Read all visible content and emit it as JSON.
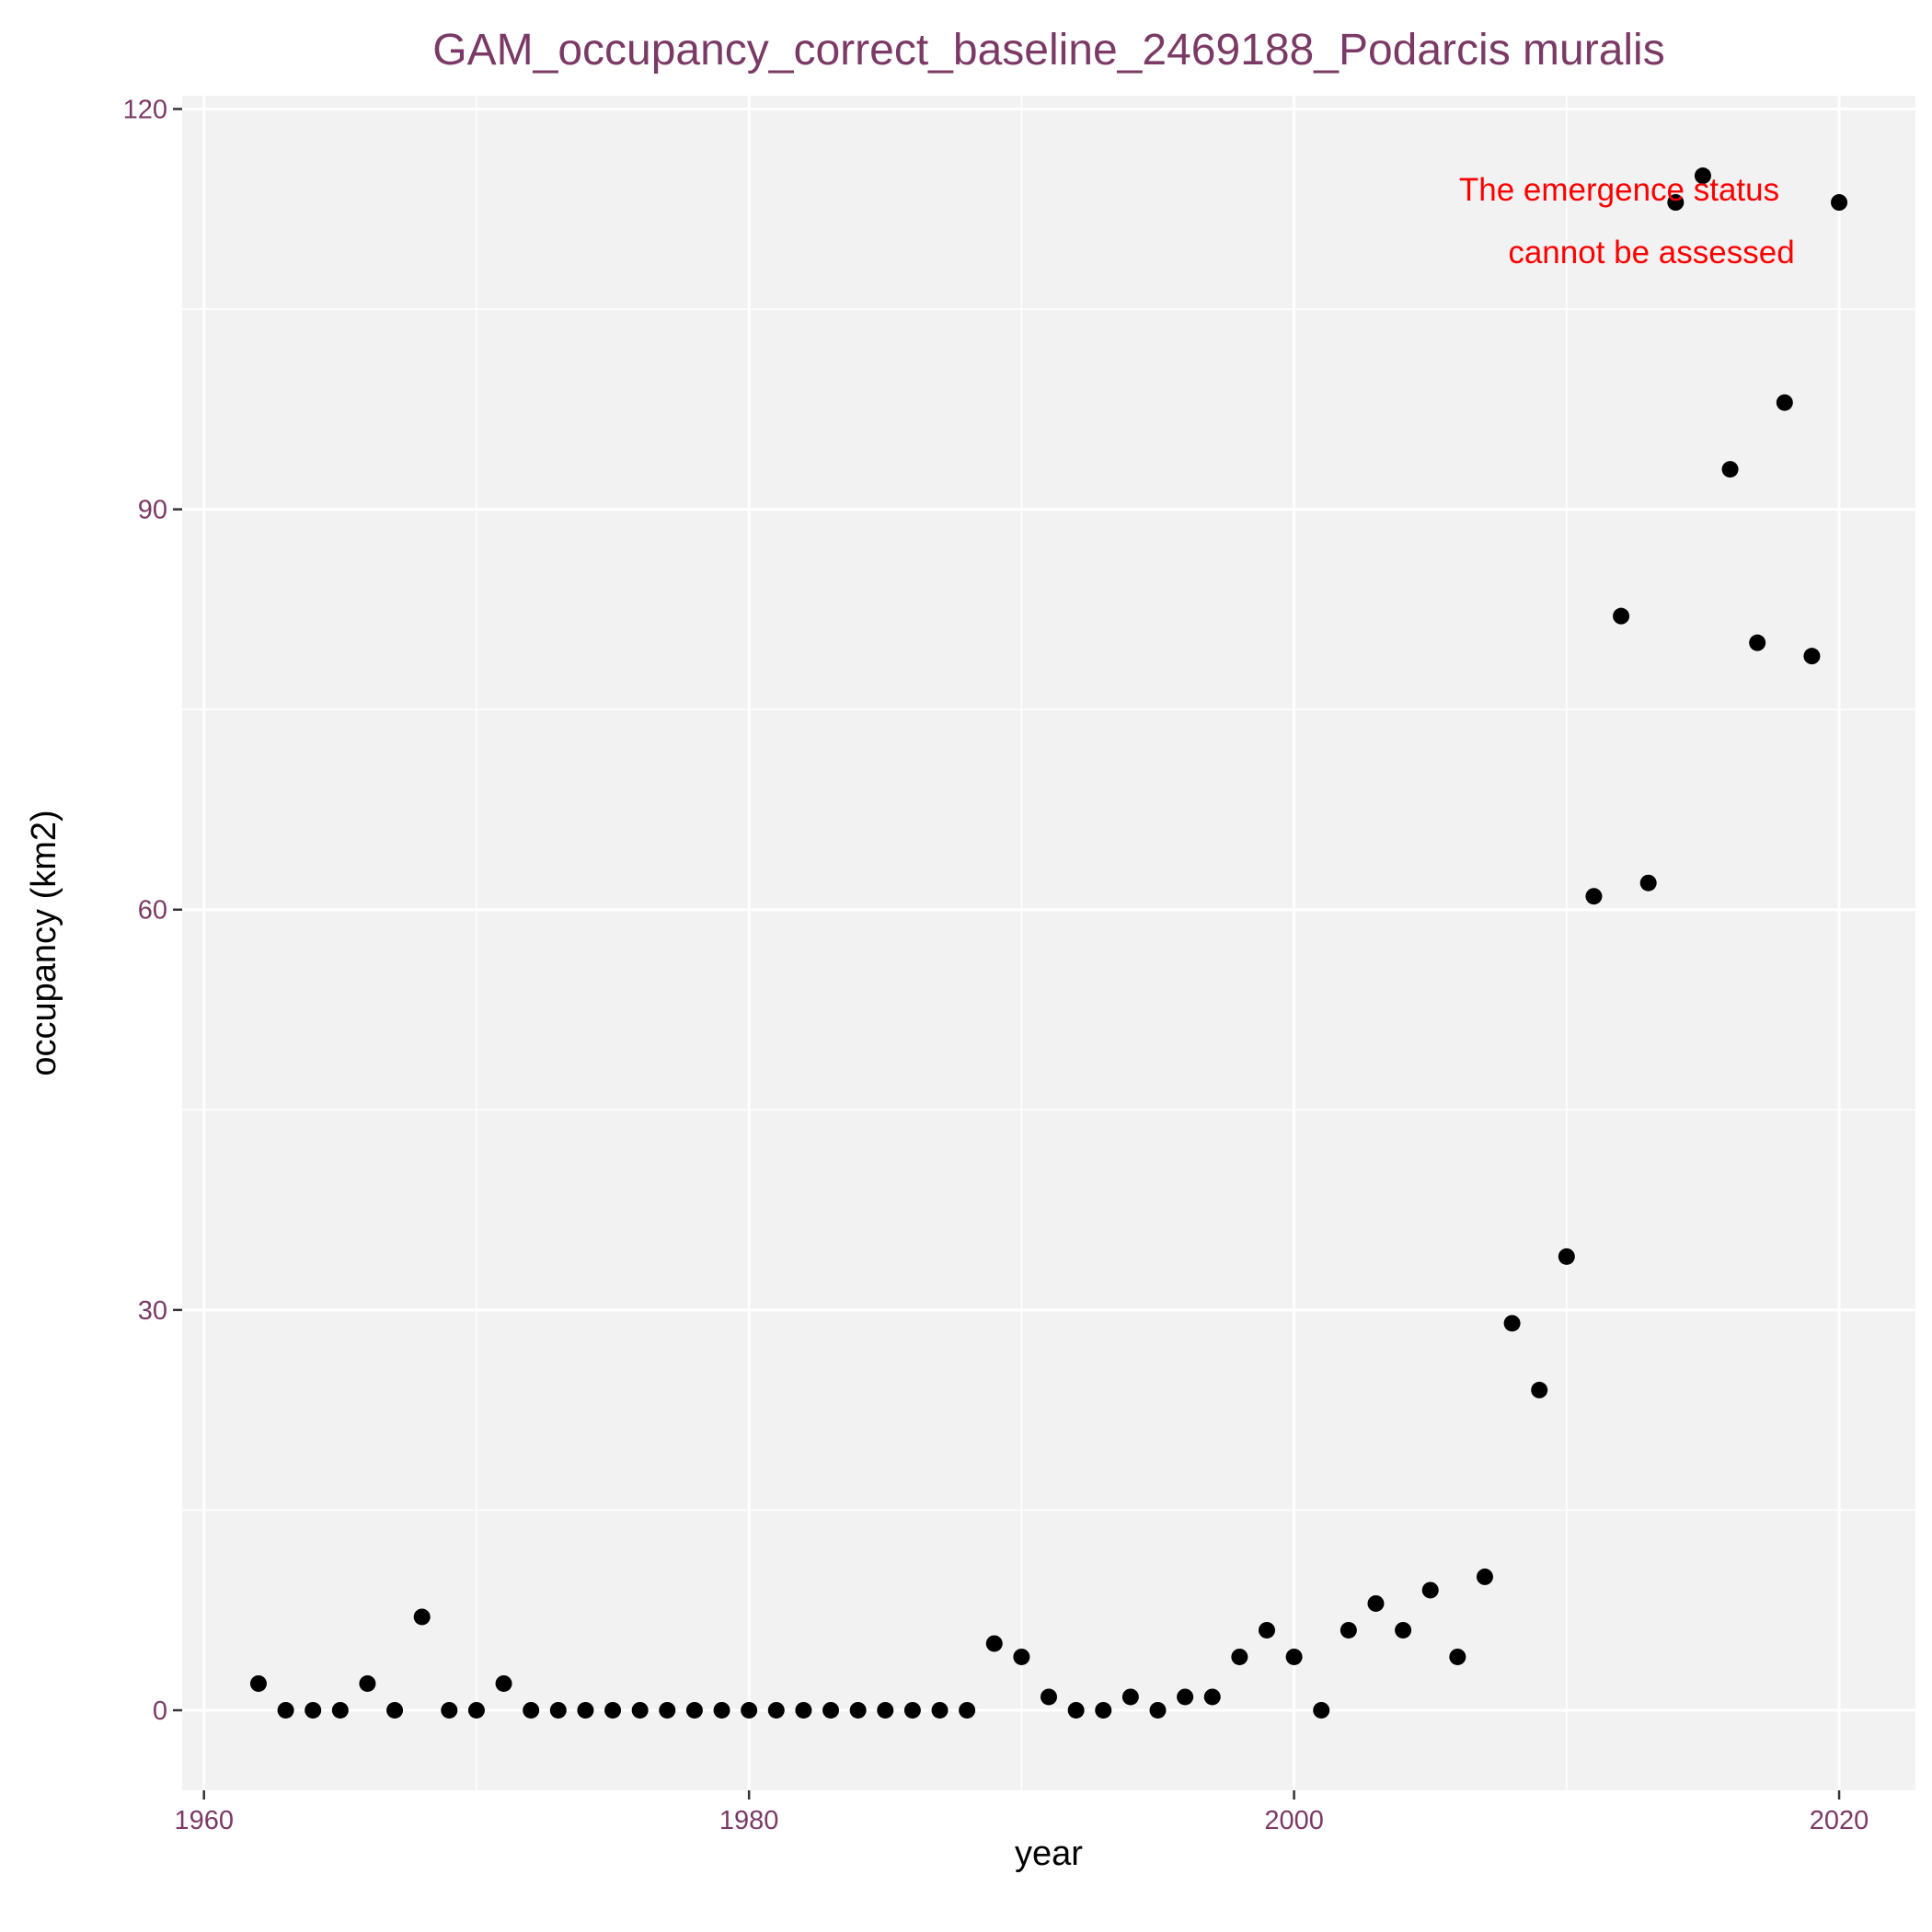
{
  "chart_data": {
    "type": "scatter",
    "title": "GAM_occupancy_correct_baseline_2469188_Podarcis muralis",
    "xlabel": "year",
    "ylabel": "occupancy (km2)",
    "xlim": [
      1959.2,
      2022.8
    ],
    "ylim": [
      -6,
      121
    ],
    "xticks": [
      1960,
      1980,
      2000,
      2020
    ],
    "yticks": [
      0,
      30,
      60,
      90,
      120
    ],
    "grid": true,
    "annotation": [
      "The emergence status",
      "cannot be assessed"
    ],
    "colors": {
      "panel": "#f2f2f2",
      "grid": "#ffffff",
      "point": "#000000",
      "title": "#7b3a66",
      "annotation": "#ff0000"
    },
    "points": [
      {
        "x": 1962,
        "y": 2
      },
      {
        "x": 1963,
        "y": 0
      },
      {
        "x": 1964,
        "y": 0
      },
      {
        "x": 1965,
        "y": 0
      },
      {
        "x": 1966,
        "y": 2
      },
      {
        "x": 1967,
        "y": 0
      },
      {
        "x": 1968,
        "y": 7
      },
      {
        "x": 1969,
        "y": 0
      },
      {
        "x": 1970,
        "y": 0
      },
      {
        "x": 1971,
        "y": 2
      },
      {
        "x": 1972,
        "y": 0
      },
      {
        "x": 1973,
        "y": 0
      },
      {
        "x": 1974,
        "y": 0
      },
      {
        "x": 1975,
        "y": 0
      },
      {
        "x": 1976,
        "y": 0
      },
      {
        "x": 1977,
        "y": 0
      },
      {
        "x": 1978,
        "y": 0
      },
      {
        "x": 1979,
        "y": 0
      },
      {
        "x": 1980,
        "y": 0
      },
      {
        "x": 1981,
        "y": 0
      },
      {
        "x": 1982,
        "y": 0
      },
      {
        "x": 1983,
        "y": 0
      },
      {
        "x": 1984,
        "y": 0
      },
      {
        "x": 1985,
        "y": 0
      },
      {
        "x": 1986,
        "y": 0
      },
      {
        "x": 1987,
        "y": 0
      },
      {
        "x": 1988,
        "y": 0
      },
      {
        "x": 1989,
        "y": 5
      },
      {
        "x": 1990,
        "y": 4
      },
      {
        "x": 1991,
        "y": 1
      },
      {
        "x": 1992,
        "y": 0
      },
      {
        "x": 1993,
        "y": 0
      },
      {
        "x": 1994,
        "y": 1
      },
      {
        "x": 1995,
        "y": 0
      },
      {
        "x": 1996,
        "y": 1
      },
      {
        "x": 1997,
        "y": 1
      },
      {
        "x": 1998,
        "y": 4
      },
      {
        "x": 1999,
        "y": 6
      },
      {
        "x": 2000,
        "y": 4
      },
      {
        "x": 2001,
        "y": 0
      },
      {
        "x": 2002,
        "y": 6
      },
      {
        "x": 2003,
        "y": 8
      },
      {
        "x": 2004,
        "y": 6
      },
      {
        "x": 2005,
        "y": 9
      },
      {
        "x": 2006,
        "y": 4
      },
      {
        "x": 2007,
        "y": 10
      },
      {
        "x": 2008,
        "y": 29
      },
      {
        "x": 2009,
        "y": 24
      },
      {
        "x": 2010,
        "y": 34
      },
      {
        "x": 2011,
        "y": 61
      },
      {
        "x": 2012,
        "y": 82
      },
      {
        "x": 2013,
        "y": 62
      },
      {
        "x": 2014,
        "y": 113
      },
      {
        "x": 2015,
        "y": 115
      },
      {
        "x": 2016,
        "y": 93
      },
      {
        "x": 2017,
        "y": 80
      },
      {
        "x": 2018,
        "y": 98
      },
      {
        "x": 2019,
        "y": 79
      },
      {
        "x": 2020,
        "y": 113
      }
    ]
  }
}
